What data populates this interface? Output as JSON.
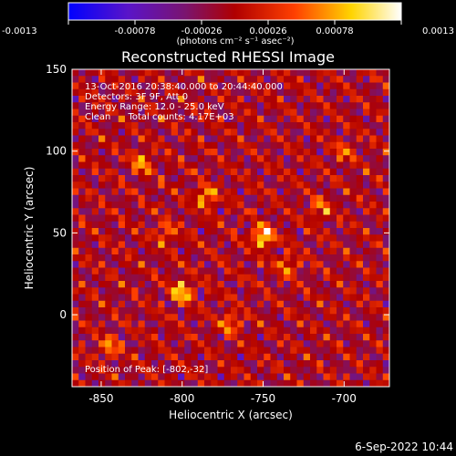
{
  "colorbar": {
    "ticks": [
      "-0.0013",
      "-0.00078",
      "-0.00026",
      "0.00026",
      "0.00078",
      "0.0013"
    ],
    "tick_values": [
      -0.0013,
      -0.00078,
      -0.00026,
      0.00026,
      0.00078,
      0.0013
    ],
    "range": [
      -0.0013,
      0.0013
    ],
    "unit_label": "(photons cm⁻² s⁻¹ asec⁻²)"
  },
  "chart_data": {
    "type": "heatmap",
    "title": "Reconstructed RHESSI Image",
    "xlabel": "Heliocentric X (arcsec)",
    "ylabel": "Heliocentric Y (arcsec)",
    "xlim": [
      -868,
      -672
    ],
    "ylim": [
      -44,
      150
    ],
    "x_ticks": [
      -850,
      -800,
      -750,
      -700
    ],
    "y_ticks": [
      0,
      50,
      100,
      150
    ],
    "x_tick_labels": [
      "-850",
      "-800",
      "-750",
      "-700"
    ],
    "y_tick_labels": [
      "0",
      "50",
      "100",
      "150"
    ],
    "peak": [
      -802,
      -32
    ]
  },
  "annotations": {
    "time_range": "13-Oct-2016 20:38:40.000 to 20:44:40.000",
    "detectors": "Detectors: 3F 9F, Att 0",
    "energy": "Energy Range: 12.0 - 25.0 keV",
    "method": "Clean      Total counts: 4.17E+03",
    "peak": "Position of Peak: [-802,-32]"
  },
  "footer": {
    "timestamp": "6-Sep-2022 10:44"
  },
  "colors": {
    "background": "#000000",
    "foreground": "#ffffff"
  }
}
